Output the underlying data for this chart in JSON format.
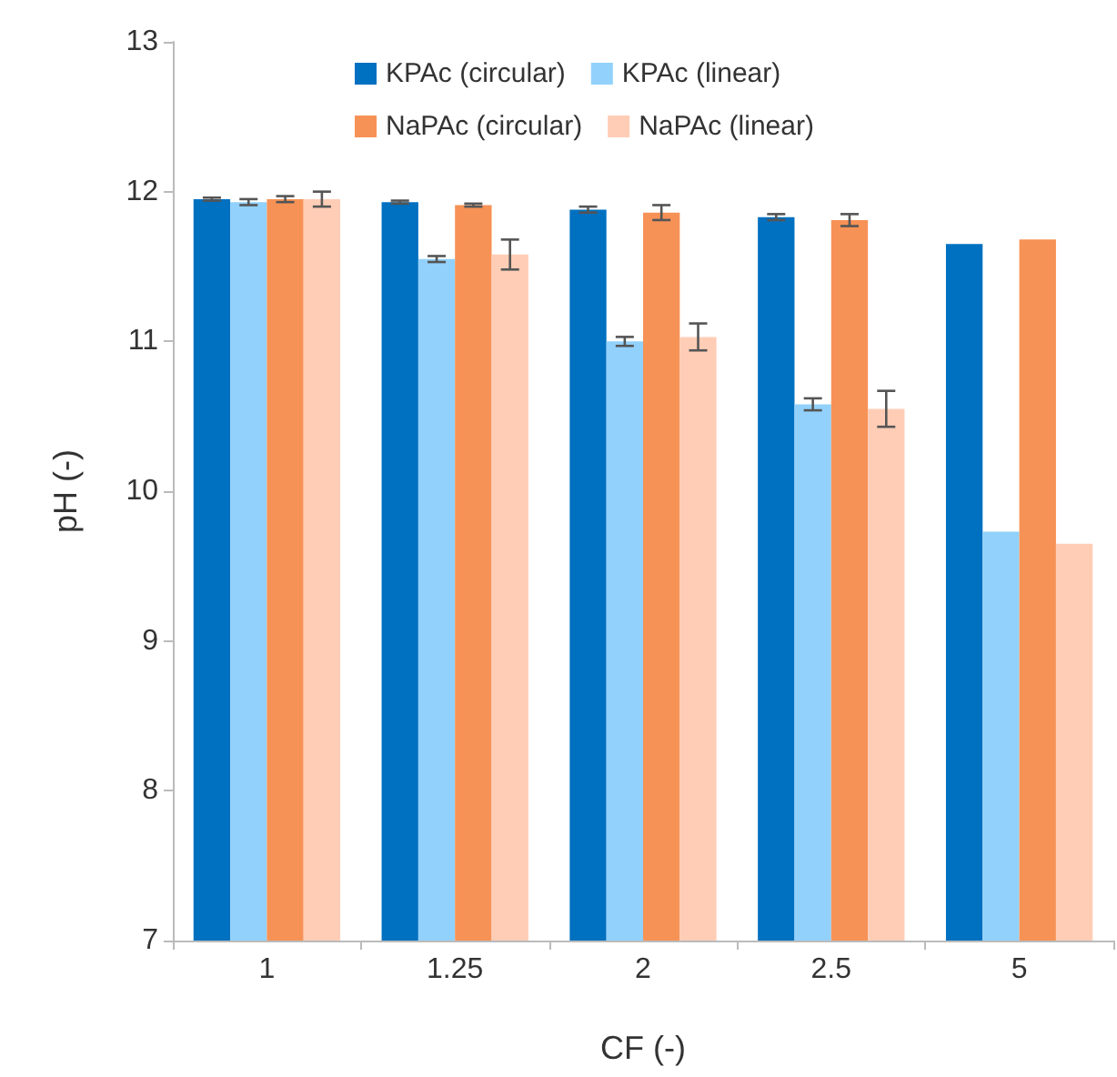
{
  "chart_data": {
    "type": "bar",
    "xlabel": "CF (-)",
    "ylabel": "pH (-)",
    "categories": [
      "1",
      "1.25",
      "2",
      "2.5",
      "5"
    ],
    "series": [
      {
        "name": "KPAc (circular)",
        "color": "#0070c0",
        "values": [
          11.95,
          11.93,
          11.88,
          11.83,
          11.65
        ],
        "errors": [
          0.01,
          0.01,
          0.02,
          0.02,
          null
        ]
      },
      {
        "name": "KPAc (linear)",
        "color": "#92d1fb",
        "values": [
          11.93,
          11.55,
          11.0,
          10.58,
          9.73
        ],
        "errors": [
          0.02,
          0.02,
          0.03,
          0.04,
          null
        ]
      },
      {
        "name": "NaPAc (circular)",
        "color": "#f79256",
        "values": [
          11.95,
          11.91,
          11.86,
          11.81,
          11.68
        ],
        "errors": [
          0.02,
          0.01,
          0.05,
          0.04,
          null
        ]
      },
      {
        "name": "NaPAc (linear)",
        "color": "#ffcdb6",
        "values": [
          11.95,
          11.58,
          11.03,
          10.55,
          9.65
        ],
        "errors": [
          0.05,
          0.1,
          0.09,
          0.12,
          null
        ]
      }
    ],
    "ylim": [
      7,
      13
    ],
    "yticks": [
      7,
      8,
      9,
      10,
      11,
      12,
      13
    ],
    "grid": false,
    "legend": "top"
  }
}
